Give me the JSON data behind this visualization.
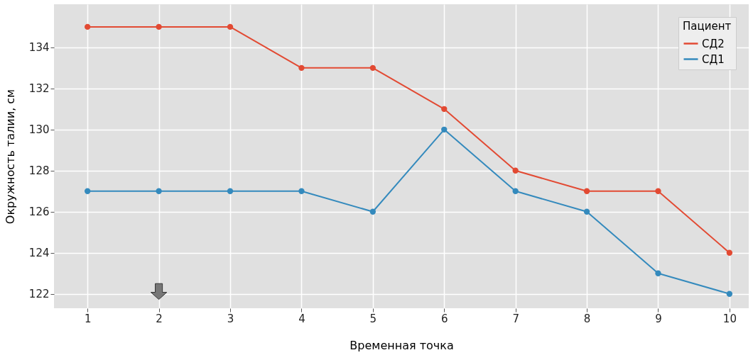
{
  "chart_data": {
    "type": "line",
    "xlabel": "Временная точка",
    "ylabel": "Окружность талии, см",
    "legend_title": "Пациент",
    "x": [
      1,
      2,
      3,
      4,
      5,
      6,
      7,
      8,
      9,
      10
    ],
    "series": [
      {
        "name": "СД2",
        "color": "#e24a33",
        "values": [
          135,
          135,
          135,
          133,
          133,
          131,
          128,
          127,
          127,
          124
        ]
      },
      {
        "name": "СД1",
        "color": "#348abd",
        "values": [
          127,
          127,
          127,
          127,
          126,
          130,
          127,
          126,
          123,
          122
        ]
      }
    ],
    "xlim": [
      0.53,
      10.27
    ],
    "xticks": [
      1,
      2,
      3,
      4,
      5,
      6,
      7,
      8,
      9,
      10
    ],
    "ylim": [
      121.3,
      136.1
    ],
    "yticks": [
      122,
      124,
      126,
      128,
      130,
      132,
      134
    ],
    "grid": true,
    "legend": "top right",
    "marker": "circle",
    "line_style": "solid"
  }
}
